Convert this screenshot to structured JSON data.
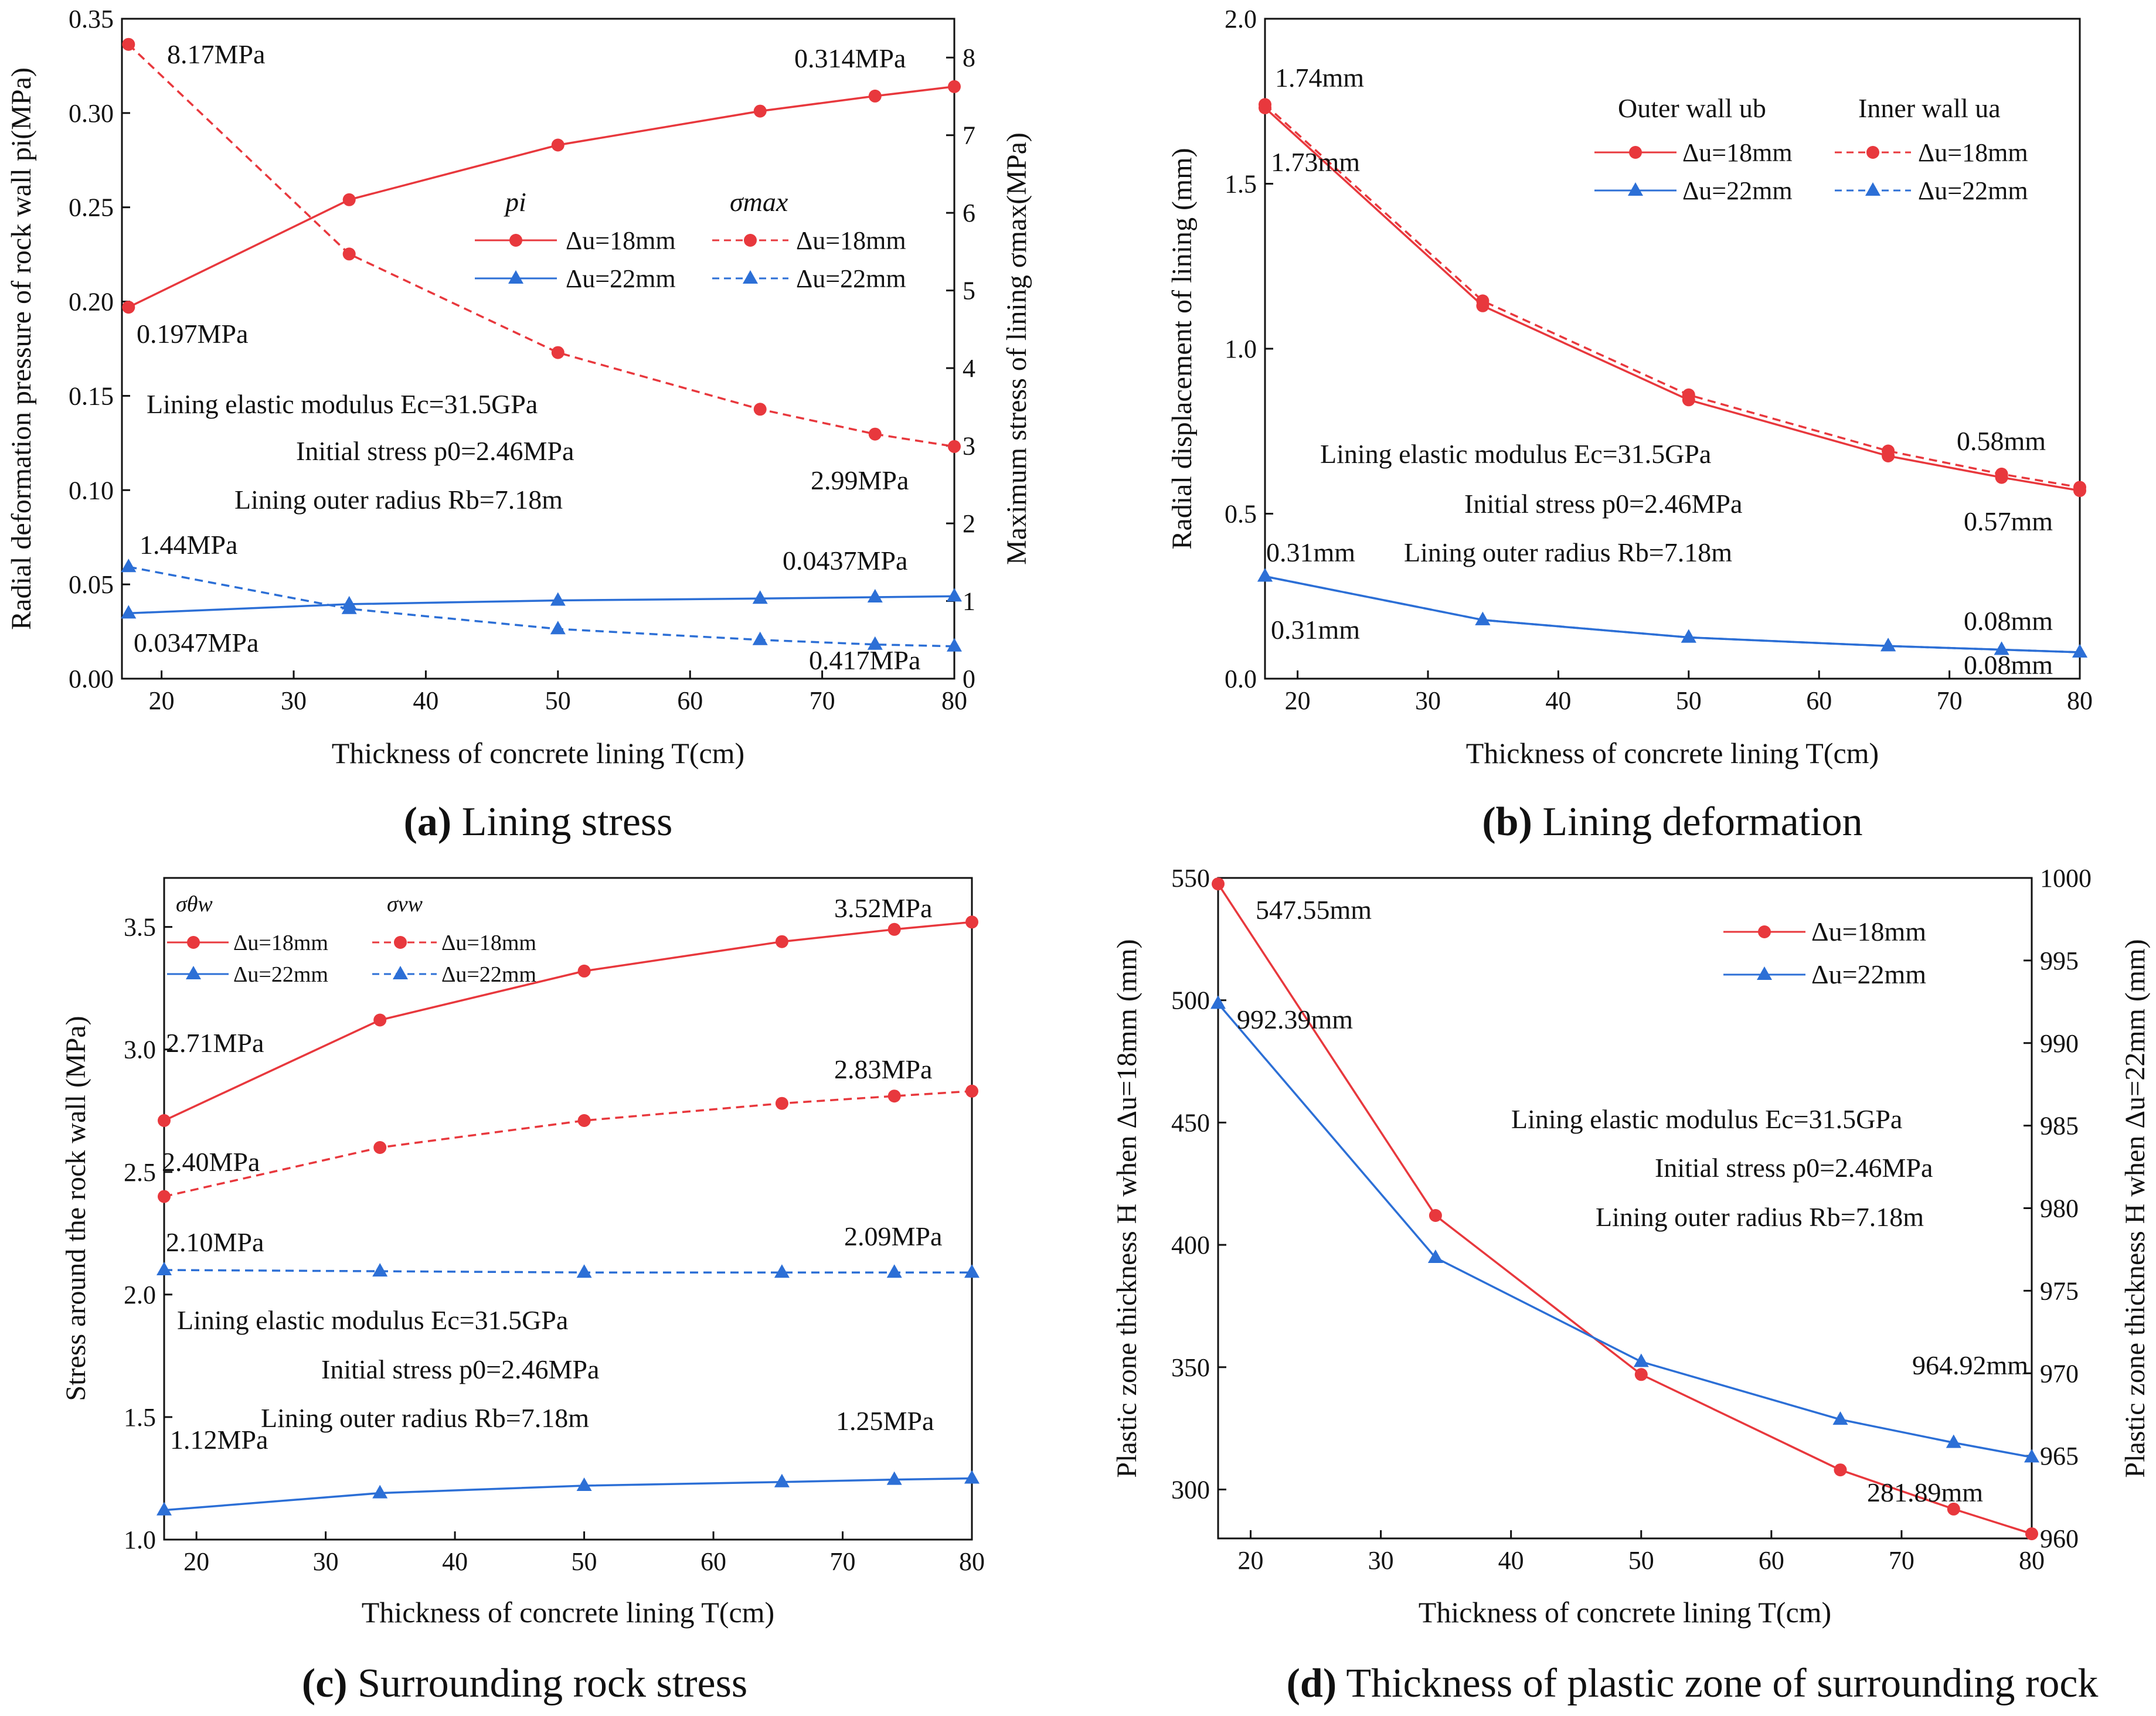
{
  "colors": {
    "red": "#e8383d",
    "blue": "#2c6fd6",
    "axis": "#111111"
  },
  "chart_data": [
    {
      "id": "a",
      "type": "line",
      "caption": {
        "letter": "(a)",
        "text": " Lining stress"
      },
      "xlabel": "Thickness of concrete lining T(cm)",
      "xlim": [
        17,
        80
      ],
      "xticks": [
        20,
        30,
        40,
        50,
        60,
        70,
        80
      ],
      "ylabel_left": "Radial deformation pressure of rock wall pi(MPa)",
      "ylim_left": [
        0,
        0.35
      ],
      "yticks_left": [
        "0.00",
        "0.05",
        "0.10",
        "0.15",
        "0.20",
        "0.25",
        "0.30",
        "0.35"
      ],
      "ylabel_right": "Maximum stress of lining σmax(MPa)",
      "ylim_right": [
        0,
        8.5
      ],
      "yticks_right": [
        "0",
        "1",
        "2",
        "3",
        "4",
        "5",
        "6",
        "7",
        "8"
      ],
      "legend": {
        "group1_title": "pi",
        "group2_title": "σmax",
        "entry_18": "Δu=18mm",
        "entry_22": "Δu=22mm"
      },
      "x": [
        17.5,
        34.2,
        50,
        65.3,
        74,
        80
      ],
      "series": [
        {
          "name": "pi, Δu=18mm",
          "axis": "left",
          "color": "red",
          "dash": false,
          "marker": "circle",
          "values": [
            0.197,
            0.254,
            0.283,
            0.301,
            0.309,
            0.314
          ]
        },
        {
          "name": "pi, Δu=22mm",
          "axis": "left",
          "color": "blue",
          "dash": false,
          "marker": "triangle",
          "values": [
            0.0347,
            0.0395,
            0.0415,
            0.0425,
            0.0432,
            0.0437
          ]
        },
        {
          "name": "σmax, Δu=18mm",
          "axis": "right",
          "color": "red",
          "dash": true,
          "marker": "circle",
          "values": [
            8.17,
            5.47,
            4.2,
            3.47,
            3.15,
            2.99
          ]
        },
        {
          "name": "σmax, Δu=22mm",
          "axis": "right",
          "color": "blue",
          "dash": true,
          "marker": "triangle",
          "values": [
            1.44,
            0.9,
            0.64,
            0.5,
            0.44,
            0.417
          ]
        }
      ],
      "annotations": [
        "8.17MPa",
        "0.314MPa",
        "0.197MPa",
        "2.99MPa",
        "1.44MPa",
        "0.0437MPa",
        "0.0347MPa",
        "0.417MPa"
      ],
      "info": [
        "Lining elastic modulus Ec=31.5GPa",
        "Initial stress p0=2.46MPa",
        "Lining outer radius Rb=7.18m"
      ]
    },
    {
      "id": "b",
      "type": "line",
      "caption": {
        "letter": "(b)",
        "text": " Lining deformation"
      },
      "xlabel": "Thickness of concrete lining T(cm)",
      "xlim": [
        17.5,
        80
      ],
      "xticks": [
        20,
        30,
        40,
        50,
        60,
        70,
        80
      ],
      "ylabel_left": "Radial displacement of lining (mm)",
      "ylim_left": [
        0,
        2.0
      ],
      "yticks_left": [
        "0.0",
        "0.5",
        "1.0",
        "1.5",
        "2.0"
      ],
      "legend": {
        "group1_title": "Outer wall ub",
        "group2_title": "Inner wall ua",
        "entry_18": "Δu=18mm",
        "entry_22": "Δu=22mm"
      },
      "x": [
        17.5,
        34.2,
        50,
        65.3,
        74,
        80
      ],
      "series": [
        {
          "name": "Outer wall ub, Δu=18mm",
          "axis": "left",
          "color": "red",
          "dash": false,
          "marker": "circle",
          "values": [
            1.73,
            1.13,
            0.845,
            0.675,
            0.61,
            0.57
          ]
        },
        {
          "name": "Inner wall ua, Δu=18mm",
          "axis": "left",
          "color": "red",
          "dash": true,
          "marker": "circle",
          "values": [
            1.74,
            1.145,
            0.86,
            0.69,
            0.62,
            0.58
          ]
        },
        {
          "name": "Outer wall ub, Δu=22mm",
          "axis": "left",
          "color": "blue",
          "dash": false,
          "marker": "triangle",
          "values": [
            0.31,
            0.178,
            0.125,
            0.099,
            0.088,
            0.08
          ]
        },
        {
          "name": "Inner wall ua, Δu=22mm",
          "axis": "left",
          "color": "blue",
          "dash": true,
          "marker": "triangle",
          "values": [
            0.31,
            0.178,
            0.125,
            0.099,
            0.088,
            0.08
          ]
        }
      ],
      "annotations": [
        "1.74mm",
        "1.73mm",
        "0.58mm",
        "0.57mm",
        "0.31mm",
        "0.31mm",
        "0.08mm",
        "0.08mm"
      ],
      "info": [
        "Lining elastic modulus Ec=31.5GPa",
        "Initial stress p0=2.46MPa",
        "Lining outer radius Rb=7.18m"
      ]
    },
    {
      "id": "c",
      "type": "line",
      "caption": {
        "letter": "(c)",
        "text": " Surrounding rock stress"
      },
      "xlabel": "Thickness of concrete lining T(cm)",
      "xlim": [
        17.5,
        80
      ],
      "xticks": [
        20,
        30,
        40,
        50,
        60,
        70,
        80
      ],
      "ylabel_left": "Stress around the rock wall (MPa)",
      "ylim_left": [
        1.0,
        3.7
      ],
      "yticks_left": [
        "1.0",
        "1.5",
        "2.0",
        "2.5",
        "3.0",
        "3.5"
      ],
      "legend": {
        "group1_title": "σθw",
        "group2_title": "σvw",
        "entry_18": "Δu=18mm",
        "entry_22": "Δu=22mm"
      },
      "x": [
        17.5,
        34.2,
        50,
        65.3,
        74,
        80
      ],
      "series": [
        {
          "name": "σθw, Δu=18mm",
          "axis": "left",
          "color": "red",
          "dash": false,
          "marker": "circle",
          "values": [
            2.71,
            3.12,
            3.32,
            3.44,
            3.49,
            3.52
          ]
        },
        {
          "name": "σvw, Δu=18mm",
          "axis": "left",
          "color": "red",
          "dash": true,
          "marker": "circle",
          "values": [
            2.4,
            2.6,
            2.71,
            2.78,
            2.81,
            2.83
          ]
        },
        {
          "name": "σvw, Δu=22mm",
          "axis": "left",
          "color": "blue",
          "dash": true,
          "marker": "triangle",
          "values": [
            2.1,
            2.095,
            2.09,
            2.09,
            2.09,
            2.09
          ]
        },
        {
          "name": "σθw, Δu=22mm",
          "axis": "left",
          "color": "blue",
          "dash": false,
          "marker": "triangle",
          "values": [
            1.12,
            1.19,
            1.22,
            1.235,
            1.245,
            1.25
          ]
        }
      ],
      "annotations": [
        "3.52MPa",
        "2.71MPa",
        "2.83MPa",
        "2.40MPa",
        "2.10MPa",
        "2.09MPa",
        "1.25MPa",
        "1.12MPa"
      ],
      "info": [
        "Lining elastic modulus Ec=31.5GPa",
        "Initial stress p0=2.46MPa",
        "Lining outer radius Rb=7.18m"
      ]
    },
    {
      "id": "d",
      "type": "line",
      "caption": {
        "letter": "(d)",
        "text": " Thickness of plastic zone of surrounding rock"
      },
      "xlabel": "Thickness of concrete lining T(cm)",
      "xlim": [
        17.5,
        80
      ],
      "xticks": [
        20,
        30,
        40,
        50,
        60,
        70,
        80
      ],
      "ylabel_left": "Plastic zone thickness H when Δu=18mm (mm)",
      "ylim_left": [
        280,
        550
      ],
      "yticks_left": [
        "300",
        "350",
        "400",
        "450",
        "500",
        "550"
      ],
      "ylabel_right": "Plastic zone thickness H when Δu=22mm (mm)",
      "ylim_right": [
        960,
        1000
      ],
      "yticks_right": [
        "960",
        "965",
        "970",
        "975",
        "980",
        "985",
        "990",
        "995",
        "1000"
      ],
      "legend": {
        "entry_18": "Δu=18mm",
        "entry_22": "Δu=22mm"
      },
      "x": [
        17.5,
        34.2,
        50,
        65.3,
        74,
        80
      ],
      "series": [
        {
          "name": "Δu=18mm",
          "axis": "left",
          "color": "red",
          "dash": false,
          "marker": "circle",
          "values": [
            547.55,
            412,
            347,
            308,
            292,
            281.89
          ]
        },
        {
          "name": "Δu=22mm",
          "axis": "right",
          "color": "blue",
          "dash": false,
          "marker": "triangle",
          "values": [
            992.39,
            977,
            970.7,
            967.2,
            965.8,
            964.92
          ]
        }
      ],
      "annotations": [
        "547.55mm",
        "992.39mm",
        "964.92mm",
        "281.89mm"
      ],
      "info": [
        "Lining elastic modulus Ec=31.5GPa",
        "Initial stress p0=2.46MPa",
        "Lining outer radius Rb=7.18m"
      ]
    }
  ]
}
